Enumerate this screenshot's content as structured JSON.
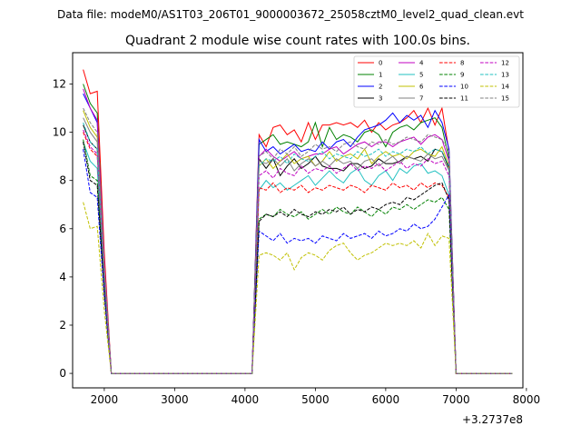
{
  "header": {
    "suptitle": "Data file: modeM0/AS1T03_206T01_9000003672_25058cztM0_level2_quad_clean.evt"
  },
  "chart_data": {
    "type": "line",
    "title": "Quadrant 2 module wise count rates with 100.0s bins.",
    "xlabel": "",
    "ylabel": "",
    "x_offset_label": "+3.2737e8",
    "xlim": [
      1550,
      7950
    ],
    "ylim": [
      -0.6,
      13.3
    ],
    "x_ticks": [
      2000,
      3000,
      4000,
      5000,
      6000,
      7000,
      8000
    ],
    "x_tick_labels": [
      "2000",
      "3000",
      "4000",
      "5000",
      "6000",
      "7000",
      "8000"
    ],
    "y_ticks": [
      0,
      2,
      4,
      6,
      8,
      10,
      12
    ],
    "y_tick_labels": [
      "0",
      "2",
      "4",
      "6",
      "8",
      "10",
      "12"
    ],
    "grid": false,
    "legend_position": "top-right",
    "x": [
      1700,
      1800,
      1900,
      2000,
      2100,
      2200,
      2300,
      2400,
      2500,
      2600,
      2700,
      2800,
      2900,
      3000,
      3100,
      3200,
      3300,
      3400,
      3500,
      3600,
      3700,
      3800,
      3900,
      4000,
      4100,
      4200,
      4300,
      4400,
      4500,
      4600,
      4700,
      4800,
      4900,
      5000,
      5100,
      5200,
      5300,
      5400,
      5500,
      5600,
      5700,
      5800,
      5900,
      6000,
      6100,
      6200,
      6300,
      6400,
      6500,
      6600,
      6700,
      6800,
      6900,
      7000,
      7100,
      7200,
      7300,
      7400,
      7500,
      7600,
      7700,
      7800
    ],
    "series": [
      {
        "name": "0",
        "color": "#ff0000",
        "dash": "solid",
        "values": [
          12.6,
          11.6,
          11.7,
          5.0,
          0,
          0,
          0,
          0,
          0,
          0,
          0,
          0,
          0,
          0,
          0,
          0,
          0,
          0,
          0,
          0,
          0,
          0,
          0,
          0,
          0,
          9.9,
          9.4,
          10.2,
          10.3,
          9.9,
          10.1,
          9.6,
          10.4,
          9.7,
          10.3,
          10.3,
          10.4,
          10.3,
          10.4,
          10.2,
          10.5,
          10.0,
          10.4,
          10.1,
          10.3,
          10.4,
          10.6,
          10.9,
          10.4,
          11.0,
          10.3,
          11.0,
          9.2,
          0,
          0,
          0,
          0,
          0,
          0,
          0,
          0,
          0
        ]
      },
      {
        "name": "1",
        "color": "#008000",
        "dash": "solid",
        "values": [
          12.0,
          11.2,
          10.8,
          4.5,
          0,
          0,
          0,
          0,
          0,
          0,
          0,
          0,
          0,
          0,
          0,
          0,
          0,
          0,
          0,
          0,
          0,
          0,
          0,
          0,
          0,
          9.5,
          9.7,
          9.9,
          9.5,
          9.6,
          9.5,
          9.4,
          9.6,
          10.4,
          9.4,
          10.2,
          9.7,
          9.9,
          9.8,
          9.6,
          10.0,
          10.1,
          9.9,
          9.4,
          10.0,
          10.2,
          10.3,
          10.1,
          10.4,
          10.5,
          10.6,
          10.2,
          8.9,
          0,
          0,
          0,
          0,
          0,
          0,
          0,
          0,
          0
        ]
      },
      {
        "name": "2",
        "color": "#0000ff",
        "dash": "solid",
        "values": [
          11.6,
          11.0,
          10.4,
          4.4,
          0,
          0,
          0,
          0,
          0,
          0,
          0,
          0,
          0,
          0,
          0,
          0,
          0,
          0,
          0,
          0,
          0,
          0,
          0,
          0,
          0,
          9.7,
          9.2,
          9.4,
          9.1,
          9.3,
          9.5,
          9.2,
          9.3,
          9.2,
          9.6,
          9.3,
          9.6,
          9.7,
          9.4,
          9.8,
          10.1,
          10.2,
          10.3,
          10.5,
          10.8,
          10.4,
          10.7,
          10.5,
          10.7,
          10.2,
          10.9,
          10.4,
          9.3,
          0,
          0,
          0,
          0,
          0,
          0,
          0,
          0,
          0
        ]
      },
      {
        "name": "3",
        "color": "#000000",
        "dash": "solid",
        "values": [
          10.3,
          9.6,
          9.3,
          4.0,
          0,
          0,
          0,
          0,
          0,
          0,
          0,
          0,
          0,
          0,
          0,
          0,
          0,
          0,
          0,
          0,
          0,
          0,
          0,
          0,
          0,
          8.9,
          8.5,
          8.9,
          8.2,
          8.6,
          8.9,
          8.5,
          8.7,
          9.0,
          8.6,
          8.5,
          8.5,
          8.4,
          8.7,
          8.7,
          8.5,
          8.6,
          8.9,
          8.7,
          8.7,
          8.8,
          9.0,
          8.9,
          9.0,
          8.8,
          9.3,
          9.2,
          8.5,
          0,
          0,
          0,
          0,
          0,
          0,
          0,
          0,
          0
        ]
      },
      {
        "name": "4",
        "color": "#c000c0",
        "dash": "solid",
        "values": [
          11.8,
          11.0,
          10.5,
          4.6,
          0,
          0,
          0,
          0,
          0,
          0,
          0,
          0,
          0,
          0,
          0,
          0,
          0,
          0,
          0,
          0,
          0,
          0,
          0,
          0,
          0,
          9.0,
          9.3,
          9.0,
          8.8,
          9.0,
          9.2,
          8.9,
          9.0,
          9.1,
          9.1,
          9.3,
          9.4,
          9.1,
          9.3,
          9.5,
          9.6,
          9.4,
          9.6,
          9.6,
          9.4,
          9.6,
          9.7,
          9.8,
          9.5,
          9.8,
          9.9,
          9.7,
          8.8,
          0,
          0,
          0,
          0,
          0,
          0,
          0,
          0,
          0
        ]
      },
      {
        "name": "5",
        "color": "#20c0c0",
        "dash": "solid",
        "values": [
          9.6,
          8.8,
          8.5,
          3.7,
          0,
          0,
          0,
          0,
          0,
          0,
          0,
          0,
          0,
          0,
          0,
          0,
          0,
          0,
          0,
          0,
          0,
          0,
          0,
          0,
          0,
          7.6,
          8.0,
          7.7,
          7.9,
          7.6,
          7.8,
          8.0,
          8.2,
          7.8,
          8.1,
          8.4,
          8.1,
          7.9,
          8.3,
          8.5,
          8.0,
          7.8,
          8.2,
          8.4,
          8.0,
          8.5,
          8.3,
          8.6,
          8.7,
          8.3,
          8.4,
          8.2,
          7.4,
          0,
          0,
          0,
          0,
          0,
          0,
          0,
          0,
          0
        ]
      },
      {
        "name": "6",
        "color": "#c0c000",
        "dash": "solid",
        "values": [
          10.9,
          10.2,
          9.8,
          4.3,
          0,
          0,
          0,
          0,
          0,
          0,
          0,
          0,
          0,
          0,
          0,
          0,
          0,
          0,
          0,
          0,
          0,
          0,
          0,
          0,
          0,
          8.6,
          8.9,
          8.5,
          8.8,
          9.1,
          8.7,
          8.9,
          9.0,
          8.6,
          8.8,
          9.2,
          8.8,
          9.0,
          9.1,
          8.9,
          9.3,
          8.7,
          9.0,
          9.2,
          9.0,
          9.1,
          8.9,
          9.2,
          9.3,
          9.1,
          9.0,
          9.4,
          8.6,
          0,
          0,
          0,
          0,
          0,
          0,
          0,
          0,
          0
        ]
      },
      {
        "name": "7",
        "color": "#808080",
        "dash": "solid",
        "values": [
          10.6,
          10.0,
          9.6,
          4.1,
          0,
          0,
          0,
          0,
          0,
          0,
          0,
          0,
          0,
          0,
          0,
          0,
          0,
          0,
          0,
          0,
          0,
          0,
          0,
          0,
          0,
          8.8,
          8.7,
          8.9,
          8.6,
          8.9,
          8.4,
          8.7,
          8.9,
          8.6,
          8.8,
          8.6,
          8.9,
          8.7,
          8.8,
          8.5,
          8.8,
          8.9,
          8.6,
          8.8,
          9.0,
          8.7,
          9.0,
          8.9,
          8.8,
          9.1,
          8.9,
          9.0,
          8.4,
          0,
          0,
          0,
          0,
          0,
          0,
          0,
          0,
          0
        ]
      },
      {
        "name": "8",
        "color": "#ff0000",
        "dash": "dashed",
        "values": [
          10.0,
          9.3,
          9.0,
          3.9,
          0,
          0,
          0,
          0,
          0,
          0,
          0,
          0,
          0,
          0,
          0,
          0,
          0,
          0,
          0,
          0,
          0,
          0,
          0,
          0,
          0,
          7.7,
          7.6,
          7.9,
          7.5,
          7.7,
          7.6,
          7.8,
          7.5,
          7.7,
          7.6,
          7.8,
          7.7,
          7.6,
          7.8,
          7.7,
          7.5,
          7.8,
          7.7,
          7.6,
          7.9,
          7.7,
          7.8,
          7.6,
          7.9,
          7.7,
          7.9,
          7.8,
          7.3,
          0,
          0,
          0,
          0,
          0,
          0,
          0,
          0,
          0
        ]
      },
      {
        "name": "9",
        "color": "#008000",
        "dash": "dashed",
        "values": [
          9.7,
          8.2,
          8.0,
          3.5,
          0,
          0,
          0,
          0,
          0,
          0,
          0,
          0,
          0,
          0,
          0,
          0,
          0,
          0,
          0,
          0,
          0,
          0,
          0,
          0,
          0,
          6.4,
          6.6,
          6.5,
          6.8,
          6.6,
          6.5,
          6.7,
          6.4,
          6.6,
          6.8,
          6.6,
          6.9,
          6.7,
          6.6,
          6.9,
          6.7,
          6.5,
          6.8,
          6.6,
          6.9,
          6.8,
          7.0,
          6.8,
          7.0,
          7.2,
          7.1,
          7.3,
          6.8,
          0,
          0,
          0,
          0,
          0,
          0,
          0,
          0,
          0
        ]
      },
      {
        "name": "10",
        "color": "#0000ff",
        "dash": "dashed",
        "values": [
          9.3,
          7.5,
          7.3,
          3.2,
          0,
          0,
          0,
          0,
          0,
          0,
          0,
          0,
          0,
          0,
          0,
          0,
          0,
          0,
          0,
          0,
          0,
          0,
          0,
          0,
          0,
          5.9,
          5.7,
          5.5,
          5.8,
          5.4,
          5.6,
          5.5,
          5.6,
          5.4,
          5.7,
          5.6,
          5.5,
          5.8,
          5.6,
          5.7,
          5.8,
          5.6,
          5.9,
          5.7,
          5.8,
          6.0,
          5.9,
          6.2,
          6.0,
          6.1,
          6.4,
          6.9,
          7.4,
          0,
          0,
          0,
          0,
          0,
          0,
          0,
          0,
          0
        ]
      },
      {
        "name": "11",
        "color": "#000000",
        "dash": "dashed",
        "values": [
          9.6,
          8.0,
          7.8,
          3.4,
          0,
          0,
          0,
          0,
          0,
          0,
          0,
          0,
          0,
          0,
          0,
          0,
          0,
          0,
          0,
          0,
          0,
          0,
          0,
          0,
          0,
          6.3,
          6.6,
          6.5,
          6.7,
          6.5,
          6.8,
          6.6,
          6.5,
          6.7,
          6.6,
          6.8,
          6.7,
          6.9,
          6.6,
          6.8,
          6.7,
          6.9,
          6.8,
          7.0,
          7.1,
          7.0,
          7.3,
          7.2,
          7.4,
          7.6,
          7.8,
          7.9,
          7.2,
          0,
          0,
          0,
          0,
          0,
          0,
          0,
          0,
          0
        ]
      },
      {
        "name": "12",
        "color": "#c000c0",
        "dash": "dashed",
        "values": [
          10.1,
          9.4,
          9.1,
          3.9,
          0,
          0,
          0,
          0,
          0,
          0,
          0,
          0,
          0,
          0,
          0,
          0,
          0,
          0,
          0,
          0,
          0,
          0,
          0,
          0,
          0,
          8.2,
          8.4,
          8.1,
          8.5,
          8.3,
          8.2,
          8.6,
          8.3,
          8.5,
          8.4,
          8.6,
          8.3,
          8.5,
          8.7,
          8.4,
          8.6,
          8.5,
          8.7,
          8.4,
          8.6,
          8.8,
          8.5,
          8.7,
          8.6,
          8.9,
          8.7,
          8.8,
          8.2,
          0,
          0,
          0,
          0,
          0,
          0,
          0,
          0,
          0
        ]
      },
      {
        "name": "13",
        "color": "#20c0c0",
        "dash": "dashed",
        "values": [
          10.4,
          9.6,
          9.3,
          4.0,
          0,
          0,
          0,
          0,
          0,
          0,
          0,
          0,
          0,
          0,
          0,
          0,
          0,
          0,
          0,
          0,
          0,
          0,
          0,
          0,
          0,
          8.6,
          8.9,
          8.8,
          9.0,
          8.7,
          9.1,
          8.9,
          8.8,
          9.0,
          9.2,
          8.9,
          9.1,
          9.0,
          8.9,
          9.2,
          9.0,
          9.1,
          9.3,
          9.0,
          9.2,
          9.1,
          9.3,
          9.2,
          9.4,
          9.1,
          9.3,
          9.2,
          8.6,
          0,
          0,
          0,
          0,
          0,
          0,
          0,
          0,
          0
        ]
      },
      {
        "name": "14",
        "color": "#c0c000",
        "dash": "dashed",
        "values": [
          7.1,
          6.0,
          6.1,
          2.6,
          0,
          0,
          0,
          0,
          0,
          0,
          0,
          0,
          0,
          0,
          0,
          0,
          0,
          0,
          0,
          0,
          0,
          0,
          0,
          0,
          0,
          4.9,
          5.0,
          4.9,
          4.7,
          5.0,
          4.3,
          4.8,
          5.0,
          4.9,
          4.7,
          5.1,
          5.3,
          5.4,
          5.0,
          4.7,
          4.9,
          5.0,
          5.2,
          5.4,
          5.3,
          5.4,
          5.3,
          5.5,
          5.2,
          5.8,
          5.3,
          5.7,
          5.6,
          0,
          0,
          0,
          0,
          0,
          0,
          0,
          0,
          0
        ]
      },
      {
        "name": "15",
        "color": "#808080",
        "dash": "dashed",
        "values": [
          11.0,
          10.4,
          10.0,
          4.3,
          0,
          0,
          0,
          0,
          0,
          0,
          0,
          0,
          0,
          0,
          0,
          0,
          0,
          0,
          0,
          0,
          0,
          0,
          0,
          0,
          0,
          9.0,
          9.2,
          8.9,
          9.3,
          9.1,
          9.4,
          9.0,
          9.2,
          9.5,
          9.3,
          9.4,
          9.2,
          9.5,
          9.6,
          9.4,
          9.3,
          9.6,
          9.5,
          9.7,
          9.5,
          9.6,
          9.8,
          9.7,
          9.6,
          9.9,
          9.8,
          9.7,
          9.2,
          0,
          0,
          0,
          0,
          0,
          0,
          0,
          0,
          0
        ]
      }
    ]
  }
}
